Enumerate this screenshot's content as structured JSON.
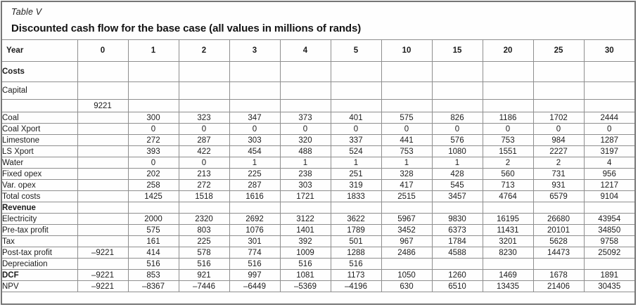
{
  "title": {
    "label": "Table V",
    "subtitle": "Discounted cash flow for the base case (all values in millions of rands)"
  },
  "table": {
    "header": [
      "Year",
      "0",
      "1",
      "2",
      "3",
      "4",
      "5",
      "10",
      "15",
      "20",
      "25",
      "30"
    ],
    "rows": [
      {
        "label": "Costs",
        "bold": true,
        "size": "lg",
        "values": [
          "",
          "",
          "",
          "",
          "",
          "",
          "",
          "",
          "",
          "",
          ""
        ]
      },
      {
        "label": "Capital",
        "bold": false,
        "size": "md",
        "values": [
          "",
          "",
          "",
          "",
          "",
          "",
          "",
          "",
          "",
          "",
          ""
        ]
      },
      {
        "label": "",
        "bold": false,
        "size": "sm",
        "values": [
          "9221",
          "",
          "",
          "",
          "",
          "",
          "",
          "",
          "",
          "",
          ""
        ]
      },
      {
        "label": "Coal",
        "bold": false,
        "values": [
          "",
          "300",
          "323",
          "347",
          "373",
          "401",
          "575",
          "826",
          "1186",
          "1702",
          "2444"
        ]
      },
      {
        "label": "Coal Xport",
        "bold": false,
        "values": [
          "",
          "0",
          "0",
          "0",
          "0",
          "0",
          "0",
          "0",
          "0",
          "0",
          "0"
        ]
      },
      {
        "label": "Limestone",
        "bold": false,
        "values": [
          "",
          "272",
          "287",
          "303",
          "320",
          "337",
          "441",
          "576",
          "753",
          "984",
          "1287"
        ]
      },
      {
        "label": "LS Xport",
        "bold": false,
        "values": [
          "",
          "393",
          "422",
          "454",
          "488",
          "524",
          "753",
          "1080",
          "1551",
          "2227",
          "3197"
        ]
      },
      {
        "label": "Water",
        "bold": false,
        "values": [
          "",
          "0",
          "0",
          "1",
          "1",
          "1",
          "1",
          "1",
          "2",
          "2",
          "4"
        ]
      },
      {
        "label": "Fixed opex",
        "bold": false,
        "values": [
          "",
          "202",
          "213",
          "225",
          "238",
          "251",
          "328",
          "428",
          "560",
          "731",
          "956"
        ]
      },
      {
        "label": "Var. opex",
        "bold": false,
        "values": [
          "",
          "258",
          "272",
          "287",
          "303",
          "319",
          "417",
          "545",
          "713",
          "931",
          "1217"
        ]
      },
      {
        "label": "Total costs",
        "bold": false,
        "values": [
          "",
          "1425",
          "1518",
          "1616",
          "1721",
          "1833",
          "2515",
          "3457",
          "4764",
          "6579",
          "9104"
        ]
      },
      {
        "label": "Revenue",
        "bold": true,
        "values": [
          "",
          "",
          "",
          "",
          "",
          "",
          "",
          "",
          "",
          "",
          ""
        ]
      },
      {
        "label": "Electricity",
        "bold": false,
        "values": [
          "",
          "2000",
          "2320",
          "2692",
          "3122",
          "3622",
          "5967",
          "9830",
          "16195",
          "26680",
          "43954"
        ]
      },
      {
        "label": "Pre-tax profit",
        "bold": false,
        "values": [
          "",
          "575",
          "803",
          "1076",
          "1401",
          "1789",
          "3452",
          "6373",
          "11431",
          "20101",
          "34850"
        ]
      },
      {
        "label": "Tax",
        "bold": false,
        "values": [
          "",
          "161",
          "225",
          "301",
          "392",
          "501",
          "967",
          "1784",
          "3201",
          "5628",
          "9758"
        ]
      },
      {
        "label": "Post-tax profit",
        "bold": false,
        "values": [
          "–9221",
          "414",
          "578",
          "774",
          "1009",
          "1288",
          "2486",
          "4588",
          "8230",
          "14473",
          "25092"
        ]
      },
      {
        "label": "Depreciation",
        "bold": false,
        "values": [
          "",
          "516",
          "516",
          "516",
          "516",
          "516",
          "",
          "",
          "",
          "",
          ""
        ]
      },
      {
        "label": "DCF",
        "bold": true,
        "values": [
          "–9221",
          "853",
          "921",
          "997",
          "1081",
          "1173",
          "1050",
          "1260",
          "1469",
          "1678",
          "1891"
        ]
      },
      {
        "label": "NPV",
        "bold": false,
        "values": [
          "–9221",
          "–8367",
          "–7446",
          "–6449",
          "–5369",
          "–4196",
          "630",
          "6510",
          "13435",
          "21406",
          "30435"
        ]
      }
    ]
  }
}
